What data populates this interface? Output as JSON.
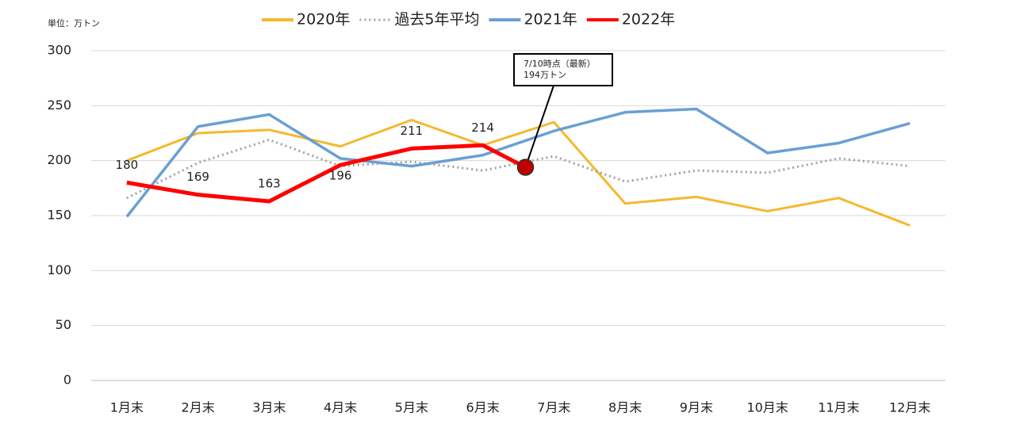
{
  "chart_data": {
    "type": "line",
    "unit_label": "単位：万トン",
    "categories": [
      "1月末",
      "2月末",
      "3月末",
      "4月末",
      "5月末",
      "6月末",
      "7月末",
      "8月末",
      "9月末",
      "10月末",
      "11月末",
      "12月末"
    ],
    "series": [
      {
        "name": "2020年",
        "color": "#f5b82e",
        "style": "solid",
        "width": 3,
        "values": [
          200,
          225,
          228,
          213,
          237,
          214,
          235,
          161,
          167,
          154,
          166,
          141
        ]
      },
      {
        "name": "過去5年平均",
        "color": "#a0a0a0",
        "style": "dotted",
        "width": 3,
        "values": [
          166,
          198,
          219,
          195,
          199,
          191,
          204,
          181,
          191,
          189,
          202,
          195
        ]
      },
      {
        "name": "2021年",
        "color": "#6a9fd4",
        "style": "solid",
        "width": 3.5,
        "values": [
          149,
          231,
          242,
          202,
          195,
          205,
          227,
          244,
          247,
          207,
          216,
          234
        ]
      },
      {
        "name": "2022年",
        "color": "#ff0000",
        "style": "solid",
        "width": 5,
        "values": [
          180,
          169,
          163,
          196,
          211,
          214,
          null,
          null,
          null,
          null,
          null,
          null
        ],
        "data_labels": true
      }
    ],
    "annotation": {
      "lines": [
        "7/10時点（最新）",
        "194万トン"
      ],
      "value": 194,
      "marker_color": "#c00000"
    },
    "ylim": [
      0,
      300
    ],
    "yticks": [
      0,
      50,
      100,
      150,
      200,
      250,
      300
    ],
    "grid": true,
    "legend": "top"
  }
}
